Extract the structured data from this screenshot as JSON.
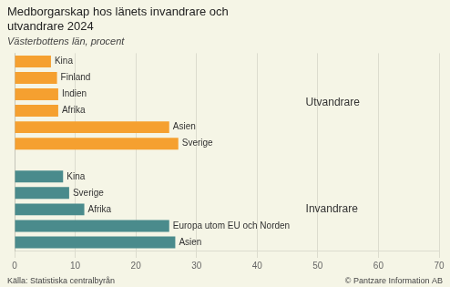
{
  "chart_data": {
    "type": "bar",
    "orientation": "horizontal",
    "title": "Medborgarskap hos länets invandrare och\nutvandrare 2024",
    "subtitle": "Västerbottens län, procent",
    "categories": [
      "Kina",
      "Finland",
      "Indien",
      "Afrika",
      "Asien",
      "Sverige",
      null,
      "Kina",
      "Sverige",
      "Afrika",
      "Europa utom EU och Norden",
      "Asien"
    ],
    "series": [
      {
        "name": "Utvandrare",
        "color": "#f5a030",
        "values": [
          6.0,
          7.0,
          7.2,
          7.2,
          25.5,
          27.0,
          null,
          null,
          null,
          null,
          null,
          null
        ]
      },
      {
        "name": "Invandrare",
        "color": "#4a8b8c",
        "values": [
          null,
          null,
          null,
          null,
          null,
          null,
          null,
          8.0,
          9.0,
          11.5,
          25.5,
          26.5
        ]
      }
    ],
    "annotations": [
      {
        "text": "Utvandrare",
        "x": 48
      },
      {
        "text": "Invandrare",
        "x": 48
      }
    ],
    "footer_left": "Källa: Statistiska centralbyrån",
    "footer_right": "© Pantzare Information AB",
    "xlim": [
      0,
      70
    ],
    "xticks": [
      0,
      10,
      20,
      30,
      40,
      50,
      60,
      70
    ],
    "grid": true,
    "legend": false,
    "tick_labels": "x"
  }
}
